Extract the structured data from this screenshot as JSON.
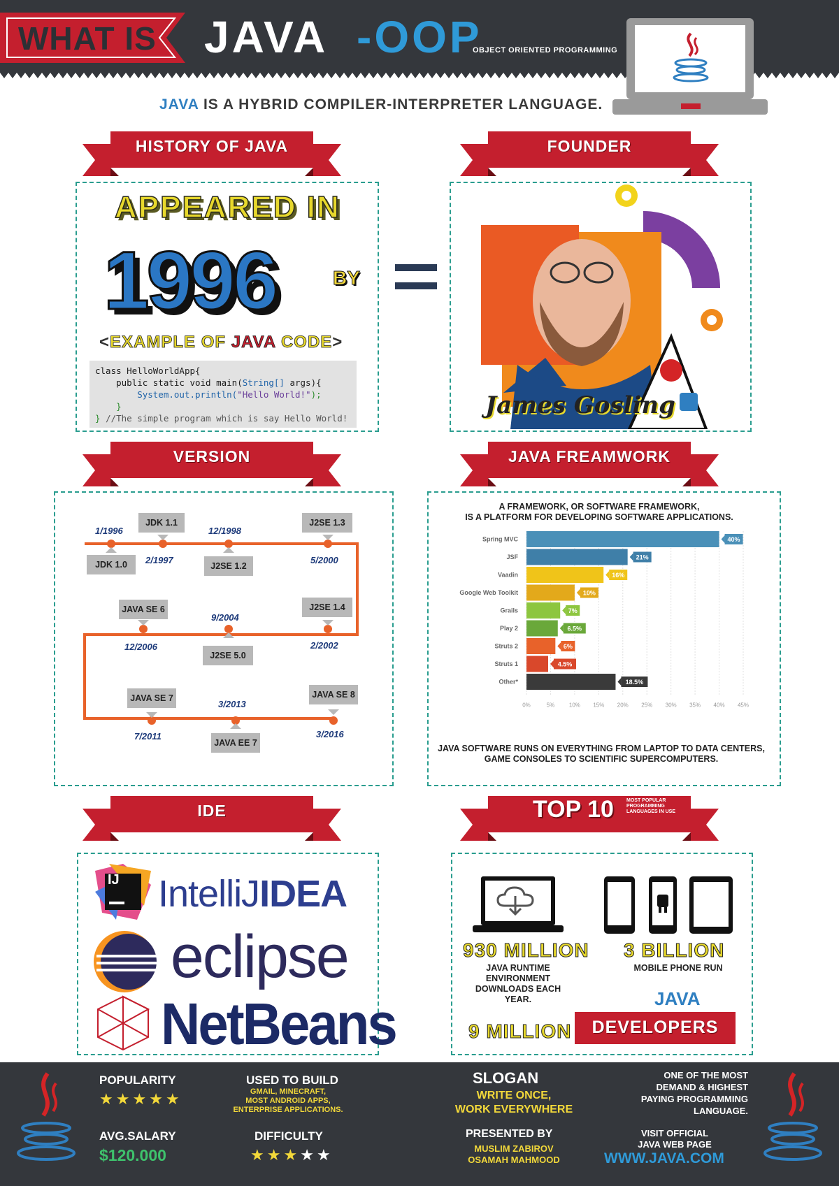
{
  "header": {
    "what_is": "WHAT IS",
    "java": "JAVA",
    "oop": "-OOP",
    "oop_full": "OBJECT ORIENTED PROGRAMMING"
  },
  "tagline": {
    "highlight": "JAVA",
    "rest": " IS A HYBRID COMPILER-INTERPRETER LANGUAGE."
  },
  "history": {
    "ribbon": "HISTORY OF JAVA",
    "appeared": "APPEARED IN",
    "year": "1996",
    "by": "BY",
    "example_open": "<",
    "example_pre": "EXAMPLE OF ",
    "example_java": "JAVA",
    "example_post": " CODE",
    "example_close": ">",
    "code": {
      "l1a": "class ",
      "l1b": "HelloWorldApp{",
      "l2a": "    public static void main(",
      "l2b": "String[]",
      "l2c": " args){",
      "l3a": "        System.out.println(",
      "l3b": "\"Hello World!\"",
      "l3c": ");",
      "l4": "    }",
      "l5a": "} ",
      "l5b": "//The simple program which is say Hello World!"
    }
  },
  "founder": {
    "ribbon": "FOUNDER",
    "name": "James Gosling"
  },
  "version": {
    "ribbon": "VERSION",
    "dates": [
      "1/1996",
      "2/1997",
      "12/1998",
      "5/2000",
      "2/2002",
      "9/2004",
      "12/2006",
      "7/2011",
      "3/2013",
      "3/2016"
    ],
    "names": [
      "JDK 1.0",
      "JDK 1.1",
      "J2SE 1.2",
      "J2SE 1.3",
      "J2SE 1.4",
      "J2SE 5.0",
      "JAVA SE 6",
      "JAVA SE 7",
      "JAVA EE 7",
      "JAVA SE 8"
    ]
  },
  "framework": {
    "ribbon": "JAVA FREAMWORK",
    "title_1": "A FRAMEWORK, OR SOFTWARE FRAMEWORK,",
    "title_2": "IS A PLATFORM FOR DEVELOPING SOFTWARE APPLICATIONS.",
    "foot_1": "JAVA SOFTWARE RUNS ON EVERYTHING FROM LAPTOP TO DATA CENTERS,",
    "foot_2": "GAME CONSOLES TO SCIENTIFIC SUPERCOMPUTERS."
  },
  "chart_data": {
    "type": "bar",
    "orientation": "horizontal",
    "categories": [
      "Spring MVC",
      "JSF",
      "Vaadin",
      "Google Web Toolkit",
      "Grails",
      "Play 2",
      "Struts 2",
      "Struts 1",
      "Other*"
    ],
    "values": [
      40,
      21,
      16,
      10,
      7,
      6.5,
      6,
      4.5,
      18.5
    ],
    "value_labels": [
      "40%",
      "21%",
      "16%",
      "10%",
      "7%",
      "6.5%",
      "6%",
      "4.5%",
      "18.5%"
    ],
    "colors": [
      "#4a90b8",
      "#3f7fa8",
      "#f0c419",
      "#e3a91b",
      "#8dc63f",
      "#6aa83a",
      "#e8622a",
      "#d9482b",
      "#3a3a3a"
    ],
    "xticks": [
      "0%",
      "5%",
      "10%",
      "15%",
      "20%",
      "25%",
      "30%",
      "35%",
      "40%",
      "45%"
    ],
    "xlim": [
      0,
      45
    ],
    "grid": true
  },
  "ide": {
    "ribbon": "IDE",
    "intellij_logo": "IJ",
    "intellij_a": "IntelliJ",
    "intellij_b": "IDEA",
    "eclipse": "eclipse",
    "netbeans": "NetBeans"
  },
  "top10": {
    "ribbon": "TOP 10",
    "ribbon_sub": "MOST POPULAR PROGRAMMING LANGUAGES IN USE",
    "stat1_big": "930 MILLION",
    "stat1_text": "JAVA RUNTIME ENVIRONMENT DOWNLOADS EACH YEAR.",
    "stat2_big": "3 BILLION",
    "stat2_text": "MOBILE PHONE RUN",
    "stat2_java": "JAVA",
    "stat3_big": "9 MILLION",
    "stat3_label": "DEVELOPERS"
  },
  "footer": {
    "popularity_label": "POPULARITY",
    "popularity_stars": 5,
    "salary_label": "AVG.SALARY",
    "salary_value": "$120.000",
    "used_label": "USED TO BUILD",
    "used_1": "GMAIL, MINECRAFT,",
    "used_2": "MOST ANDROID APPS,",
    "used_3": "ENTERPRISE APPLICATIONS.",
    "difficulty_label": "DIFFICULTY",
    "difficulty_stars": 3,
    "difficulty_max": 5,
    "slogan_label": "SLOGAN",
    "slogan_1": "WRITE ONCE,",
    "slogan_2": "WORK EVERYWHERE",
    "presented_label": "PRESENTED BY",
    "author_1": "MUSLIM ZABIROV",
    "author_2": "OSAMAH MAHMOOD",
    "demand_1": "ONE OF THE MOST",
    "demand_2": "DEMAND & HIGHEST",
    "demand_3": "PAYING PROGRAMMING",
    "demand_4": "LANGUAGE.",
    "visit_1": "VISIT OFFICIAL",
    "visit_2": "JAVA WEB PAGE",
    "url": "WWW.JAVA.COM"
  },
  "colors": {
    "ribbon_red": "#c41f2e",
    "ribbon_dark": "#8e1520",
    "dash_teal": "#2a9d8f",
    "header_bg": "#34373c",
    "timeline_orange": "#e8622a",
    "java_blue": "#2f9ad8"
  }
}
